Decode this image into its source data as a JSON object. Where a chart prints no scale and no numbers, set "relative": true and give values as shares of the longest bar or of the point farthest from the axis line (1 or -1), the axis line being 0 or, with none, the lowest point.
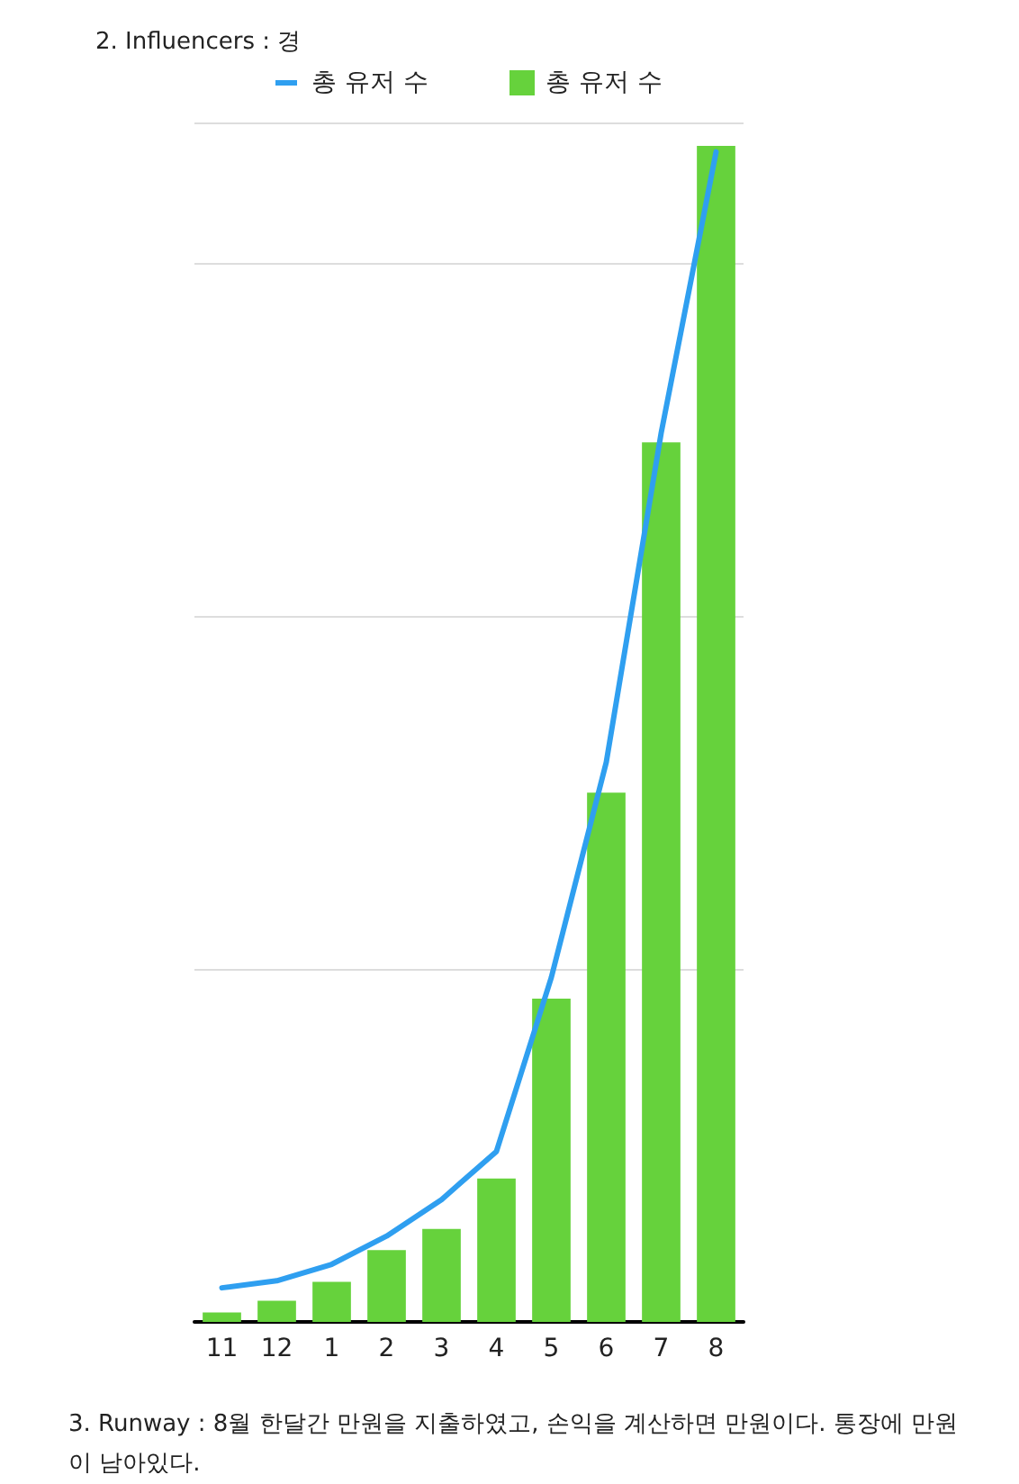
{
  "chart_data": {
    "type": "bar",
    "title": "2. Influencers : 경",
    "categories": [
      "11",
      "12",
      "1",
      "2",
      "3",
      "4",
      "5",
      "6",
      "7",
      "8"
    ],
    "relative": true,
    "grid": "y",
    "legend": "top",
    "series": [
      {
        "name": "총 유저 수",
        "type": "line",
        "color": "#2f9ff0",
        "values": [
          0.029,
          0.035,
          0.049,
          0.073,
          0.104,
          0.145,
          0.293,
          0.476,
          0.756,
          0.995
        ]
      },
      {
        "name": "총 유저 수",
        "color": "#66d23c",
        "values": [
          0.008,
          0.018,
          0.034,
          0.061,
          0.079,
          0.122,
          0.275,
          0.45,
          0.748,
          1
        ]
      }
    ],
    "annotations": [
      "3. Runway : 8월 한달간 만원을 지출하였고, 손익을 계산하면 만원이다. 통장에 만원이 남아있다."
    ]
  }
}
